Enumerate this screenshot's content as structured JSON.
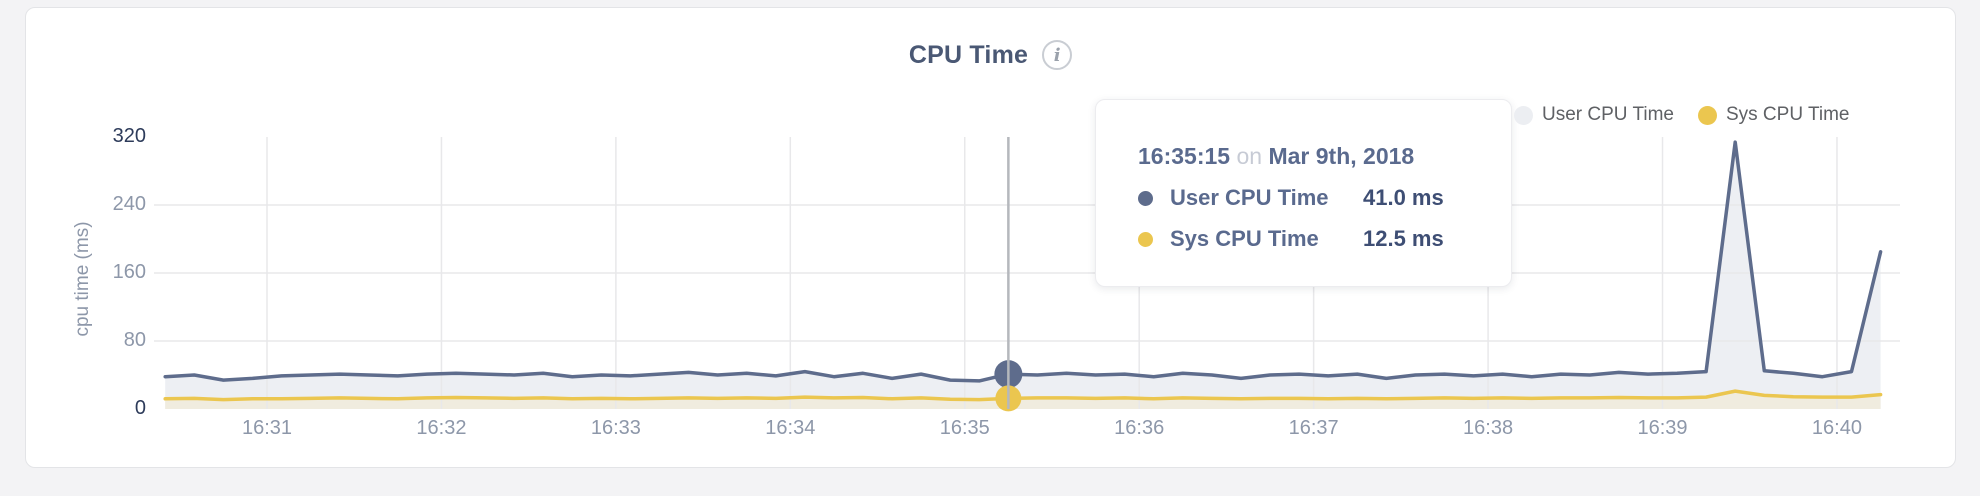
{
  "header": {
    "title": "CPU Time",
    "info_icon_glyph": "i"
  },
  "y_axis_title": "cpu time (ms)",
  "legend": {
    "items": [
      {
        "label": "User CPU Time",
        "dot_color": "#eceef2"
      },
      {
        "label": "Sys CPU Time",
        "dot_color": "#ebc64f"
      }
    ]
  },
  "tooltip": {
    "time": "16:35:15",
    "separator": "on",
    "date": "Mar 9th, 2018",
    "rows": [
      {
        "label": "User CPU Time",
        "value": "41.0 ms",
        "dot_color": "#5e6c8c"
      },
      {
        "label": "Sys CPU Time",
        "value": "12.5 ms",
        "dot_color": "#ebc64f"
      }
    ]
  },
  "chart_data": {
    "type": "area",
    "title": "CPU Time",
    "ylabel": "cpu time (ms)",
    "ylim": [
      0,
      320
    ],
    "y_ticks": [
      0,
      80,
      160,
      240,
      320
    ],
    "y_ticks_emphasized": [
      0,
      320
    ],
    "x_ticks": [
      "16:31",
      "16:32",
      "16:33",
      "16:34",
      "16:35",
      "16:36",
      "16:37",
      "16:38",
      "16:39",
      "16:40"
    ],
    "grid": {
      "horizontal_at": [
        80,
        160,
        240
      ],
      "vertical_at_x_ticks": true,
      "color": "#e8e8ea"
    },
    "hover": {
      "time": "16:35:15",
      "date": "Mar 9th, 2018",
      "line_color": "#b5b8bd",
      "values": {
        "User CPU Time": 41.0,
        "Sys CPU Time": 12.5
      }
    },
    "legend_position": "top-right",
    "series": [
      {
        "name": "User CPU Time",
        "unit": "ms",
        "color": "#5e6c8c",
        "fill": "#edeff3",
        "points": [
          [
            "16:30:25",
            38
          ],
          [
            "16:30:35",
            40
          ],
          [
            "16:30:45",
            34
          ],
          [
            "16:30:55",
            36
          ],
          [
            "16:31:05",
            39
          ],
          [
            "16:31:15",
            40
          ],
          [
            "16:31:25",
            41
          ],
          [
            "16:31:35",
            40
          ],
          [
            "16:31:45",
            39
          ],
          [
            "16:31:55",
            41
          ],
          [
            "16:32:05",
            42
          ],
          [
            "16:32:15",
            41
          ],
          [
            "16:32:25",
            40
          ],
          [
            "16:32:35",
            42
          ],
          [
            "16:32:45",
            38
          ],
          [
            "16:32:55",
            40
          ],
          [
            "16:33:05",
            39
          ],
          [
            "16:33:15",
            41
          ],
          [
            "16:33:25",
            43
          ],
          [
            "16:33:35",
            40
          ],
          [
            "16:33:45",
            42
          ],
          [
            "16:33:55",
            39
          ],
          [
            "16:34:05",
            44
          ],
          [
            "16:34:15",
            38
          ],
          [
            "16:34:25",
            42
          ],
          [
            "16:34:35",
            36
          ],
          [
            "16:34:45",
            41
          ],
          [
            "16:34:55",
            34
          ],
          [
            "16:35:05",
            33
          ],
          [
            "16:35:15",
            41
          ],
          [
            "16:35:25",
            40
          ],
          [
            "16:35:35",
            42
          ],
          [
            "16:35:45",
            40
          ],
          [
            "16:35:55",
            41
          ],
          [
            "16:36:05",
            38
          ],
          [
            "16:36:15",
            42
          ],
          [
            "16:36:25",
            40
          ],
          [
            "16:36:35",
            36
          ],
          [
            "16:36:45",
            40
          ],
          [
            "16:36:55",
            41
          ],
          [
            "16:37:05",
            39
          ],
          [
            "16:37:15",
            41
          ],
          [
            "16:37:25",
            36
          ],
          [
            "16:37:35",
            40
          ],
          [
            "16:37:45",
            41
          ],
          [
            "16:37:55",
            39
          ],
          [
            "16:38:05",
            41
          ],
          [
            "16:38:15",
            38
          ],
          [
            "16:38:25",
            41
          ],
          [
            "16:38:35",
            40
          ],
          [
            "16:38:45",
            43
          ],
          [
            "16:38:55",
            41
          ],
          [
            "16:39:05",
            42
          ],
          [
            "16:39:15",
            44
          ],
          [
            "16:39:25",
            314
          ],
          [
            "16:39:35",
            45
          ],
          [
            "16:39:45",
            42
          ],
          [
            "16:39:55",
            38
          ],
          [
            "16:40:05",
            44
          ],
          [
            "16:40:15",
            185
          ]
        ]
      },
      {
        "name": "Sys CPU Time",
        "unit": "ms",
        "color": "#ebc64f",
        "fill": "#f0ecdf",
        "points": [
          [
            "16:30:25",
            12
          ],
          [
            "16:30:35",
            12.5
          ],
          [
            "16:30:45",
            11
          ],
          [
            "16:30:55",
            12
          ],
          [
            "16:31:05",
            12
          ],
          [
            "16:31:15",
            12.5
          ],
          [
            "16:31:25",
            13
          ],
          [
            "16:31:35",
            12.5
          ],
          [
            "16:31:45",
            12
          ],
          [
            "16:31:55",
            13
          ],
          [
            "16:32:05",
            13.5
          ],
          [
            "16:32:15",
            13
          ],
          [
            "16:32:25",
            12.5
          ],
          [
            "16:32:35",
            13
          ],
          [
            "16:32:45",
            12
          ],
          [
            "16:32:55",
            12.5
          ],
          [
            "16:33:05",
            12
          ],
          [
            "16:33:15",
            12.5
          ],
          [
            "16:33:25",
            13
          ],
          [
            "16:33:35",
            12.5
          ],
          [
            "16:33:45",
            13
          ],
          [
            "16:33:55",
            12.5
          ],
          [
            "16:34:05",
            14
          ],
          [
            "16:34:15",
            13
          ],
          [
            "16:34:25",
            13.5
          ],
          [
            "16:34:35",
            12
          ],
          [
            "16:34:45",
            13
          ],
          [
            "16:34:55",
            11.5
          ],
          [
            "16:35:05",
            11
          ],
          [
            "16:35:15",
            12.5
          ],
          [
            "16:35:25",
            13
          ],
          [
            "16:35:35",
            13
          ],
          [
            "16:35:45",
            12.5
          ],
          [
            "16:35:55",
            13
          ],
          [
            "16:36:05",
            12
          ],
          [
            "16:36:15",
            13
          ],
          [
            "16:36:25",
            12.5
          ],
          [
            "16:36:35",
            12
          ],
          [
            "16:36:45",
            12.5
          ],
          [
            "16:36:55",
            12.5
          ],
          [
            "16:37:05",
            12
          ],
          [
            "16:37:15",
            12.5
          ],
          [
            "16:37:25",
            12
          ],
          [
            "16:37:35",
            12.5
          ],
          [
            "16:37:45",
            13
          ],
          [
            "16:37:55",
            12.5
          ],
          [
            "16:38:05",
            13
          ],
          [
            "16:38:15",
            12.5
          ],
          [
            "16:38:25",
            13
          ],
          [
            "16:38:35",
            13
          ],
          [
            "16:38:45",
            13.5
          ],
          [
            "16:38:55",
            13
          ],
          [
            "16:39:05",
            13
          ],
          [
            "16:39:15",
            14
          ],
          [
            "16:39:25",
            21
          ],
          [
            "16:39:35",
            16
          ],
          [
            "16:39:45",
            14.5
          ],
          [
            "16:39:55",
            14
          ],
          [
            "16:40:05",
            14
          ],
          [
            "16:40:15",
            17
          ]
        ]
      }
    ],
    "axis_label_color": "#8d97a9",
    "axis_label_emphasized_color": "#2d3b5a"
  }
}
